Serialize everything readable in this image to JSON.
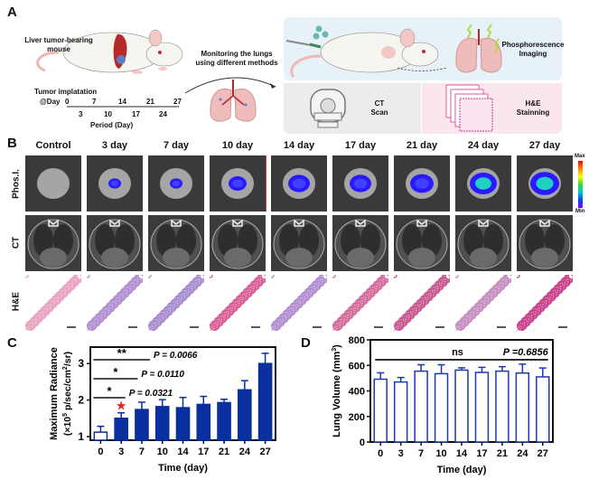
{
  "panel_a": {
    "letter": "A",
    "mouse_label": [
      "Liver tumor-bearing",
      "mouse"
    ],
    "timeline_title": "Tumor implatation",
    "timeline_start": "@Day",
    "timeline_top_ticks": [
      "0",
      "7",
      "14",
      "21",
      "27"
    ],
    "timeline_bottom_ticks": [
      "3",
      "10",
      "17",
      "24"
    ],
    "timeline_axis": "Period (Day)",
    "monitoring_text": [
      "Monitoring the lungs",
      "using different methods"
    ],
    "phos_imaging": [
      "Phosphorescence",
      "Imaging"
    ],
    "ct_scan": [
      "CT",
      "Scan"
    ],
    "he_staining": [
      "H&E",
      "Stainning"
    ],
    "colors": {
      "phos_box": "#e6f1f8",
      "ct_box": "#ececec",
      "he_box": "#fbe6ee"
    }
  },
  "panel_b": {
    "letter": "B",
    "columns": [
      "Control",
      "3 day",
      "7 day",
      "10 day",
      "14 day",
      "17 day",
      "21 day",
      "24 day",
      "27 day"
    ],
    "rows": [
      "Phos.I.",
      "CT",
      "H&E"
    ],
    "colorbar": {
      "max": "Max",
      "min": "Min"
    }
  },
  "panel_c": {
    "letter": "C"
  },
  "panel_d": {
    "letter": "D"
  },
  "chart_data": [
    {
      "type": "bar",
      "title": "",
      "xlabel": "Time (day)",
      "ylabel": "Maximum Radiance",
      "ylabel2": "(×10",
      "ylabel_sup": "5",
      "ylabel3": " p/sec/cm",
      "ylabel_sup2": "2",
      "ylabel4": "/sr)",
      "categories": [
        "0",
        "3",
        "7",
        "10",
        "14",
        "17",
        "21",
        "24",
        "27"
      ],
      "values": [
        1.12,
        1.5,
        1.74,
        1.82,
        1.79,
        1.88,
        1.93,
        2.28,
        3.0
      ],
      "errors": [
        0.16,
        0.15,
        0.2,
        0.19,
        0.28,
        0.22,
        0.09,
        0.25,
        0.28
      ],
      "yticks": [
        "1",
        "2",
        "3"
      ],
      "ylim": [
        0.9,
        3.45
      ],
      "bar_color": "#0a2f9e",
      "first_bar_open": true,
      "annotations": [
        {
          "stars": "**",
          "p": "P = 0.0066",
          "from": "0",
          "to": "14"
        },
        {
          "stars": "*",
          "p": "P = 0.0110",
          "from": "0",
          "to": "10"
        },
        {
          "stars": "*",
          "p": "P = 0.0321",
          "from": "0",
          "to": "7"
        }
      ],
      "marker": {
        "symbol": "★",
        "at": "3",
        "color": "#e52420"
      }
    },
    {
      "type": "bar",
      "title": "",
      "xlabel": "Time (day)",
      "ylabel": "Lung Volume (mm",
      "ylabel_sup": "3",
      "ylabel_end": ")",
      "categories": [
        "0",
        "3",
        "7",
        "10",
        "14",
        "17",
        "21",
        "24",
        "27"
      ],
      "values": [
        492,
        470,
        555,
        535,
        563,
        545,
        555,
        540,
        510
      ],
      "errors": [
        50,
        35,
        50,
        70,
        18,
        40,
        35,
        70,
        70
      ],
      "yticks": [
        "0",
        "200",
        "400",
        "600",
        "800"
      ],
      "ylim": [
        0,
        800
      ],
      "bar_color": "#1a3ab0",
      "annotations": [
        {
          "text": "ns",
          "p": "P =0.6856"
        }
      ]
    }
  ]
}
